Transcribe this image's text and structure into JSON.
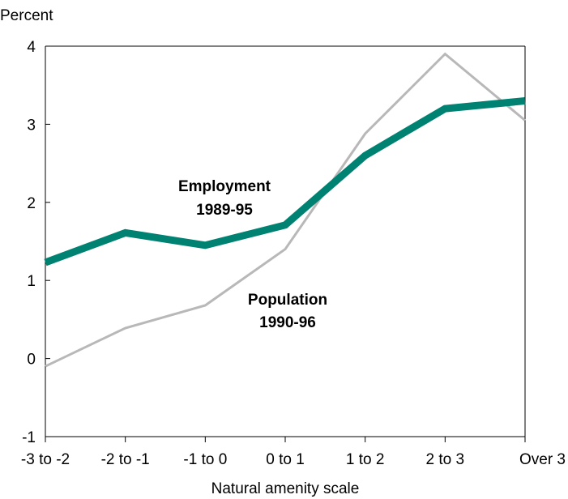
{
  "chart_data": {
    "type": "line",
    "title": "",
    "ylabel": "Percent",
    "xlabel": "Natural amenity scale",
    "categories": [
      "-3 to -2",
      "-2 to -1",
      "-1 to 0",
      "0 to 1",
      "1 to 2",
      "2 to 3",
      "Over 3"
    ],
    "ylim": [
      -1,
      4
    ],
    "yticks": [
      -1,
      0,
      1,
      2,
      3,
      4
    ],
    "grid": false,
    "legend": "inline labels",
    "series": [
      {
        "name": "Employment 1989-95",
        "label_lines": [
          "Employment",
          "1989-95"
        ],
        "color": "#008272",
        "values": [
          1.23,
          1.61,
          1.45,
          1.71,
          2.6,
          3.2,
          3.3
        ]
      },
      {
        "name": "Population 1990-96",
        "label_lines": [
          "Population",
          "1990-96"
        ],
        "color": "#b8b8b8",
        "values": [
          -0.1,
          0.39,
          0.68,
          1.4,
          2.88,
          3.9,
          3.05
        ]
      }
    ]
  }
}
